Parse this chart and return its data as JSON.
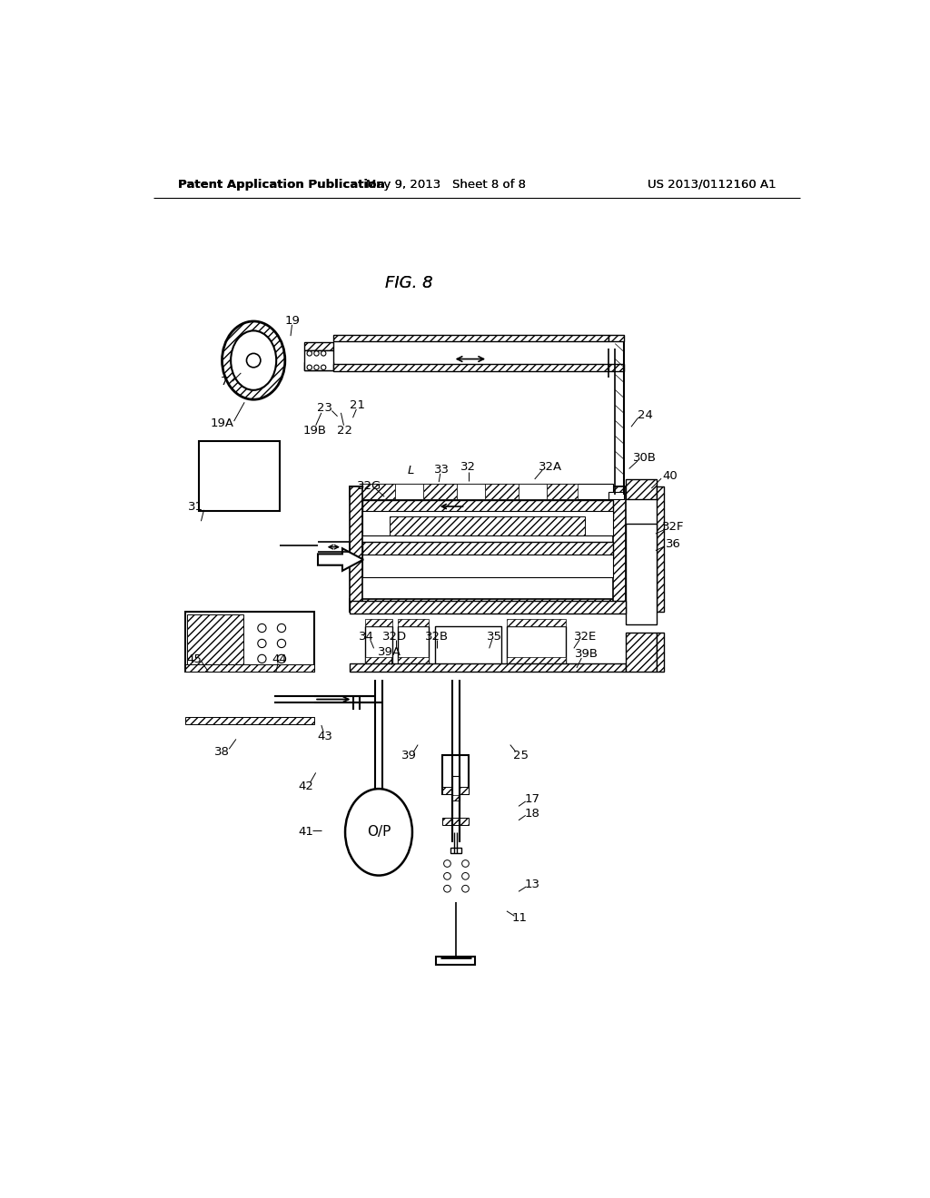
{
  "header_left": "Patent Application Publication",
  "header_center": "May 9, 2013   Sheet 8 of 8",
  "header_right": "US 2013/0112160 A1",
  "title": "FIG. 8",
  "bg_color": "#ffffff",
  "lc": "#000000",
  "fs": 9.5,
  "fs_title": 13,
  "fs_header": 9.5
}
